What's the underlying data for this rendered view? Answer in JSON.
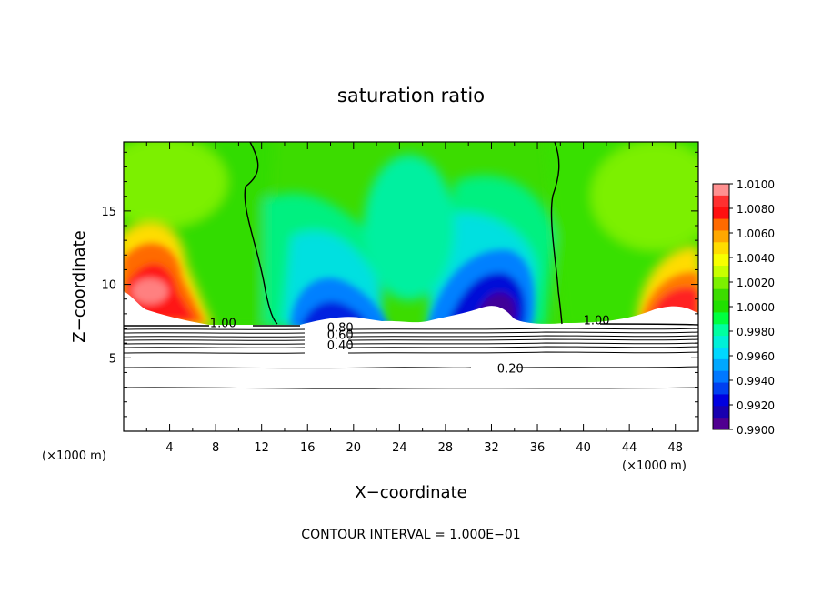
{
  "chart_data": {
    "type": "heatmap",
    "title": "saturation ratio",
    "xlabel": "X−coordinate",
    "ylabel": "Z−coordinate",
    "x_unit_left": "(×1000 m)",
    "x_unit_right": "(×1000 m)",
    "xlim": [
      0,
      50
    ],
    "ylim": [
      0,
      19.7
    ],
    "x_ticks": [
      4,
      8,
      12,
      16,
      20,
      24,
      28,
      32,
      36,
      40,
      44,
      48
    ],
    "y_ticks": [
      5,
      10,
      15
    ],
    "colorbar": {
      "range": [
        0.99,
        1.01
      ],
      "tick_labels": [
        "1.0100",
        "1.0080",
        "1.0060",
        "1.0040",
        "1.0020",
        "1.0000",
        "0.9980",
        "0.9960",
        "0.9940",
        "0.9920",
        "0.9900"
      ],
      "colors": [
        "#ff9090",
        "#ff3030",
        "#ff1010",
        "#ff6a00",
        "#ffa800",
        "#ffdc00",
        "#f8ff00",
        "#c8ff00",
        "#7cf000",
        "#3cdc00",
        "#20e000",
        "#00ff40",
        "#00ffa0",
        "#00f0d8",
        "#00d8ff",
        "#00a8ff",
        "#0078ff",
        "#0040f0",
        "#0000e0",
        "#1800b0",
        "#500090"
      ]
    },
    "contour_lines": [
      {
        "label": "1.00",
        "x": 7.5,
        "z": 7.4
      },
      {
        "label": "1.00",
        "x": 40,
        "z": 7.6
      },
      {
        "label": "0.80",
        "x": 17.7,
        "z": 7.1
      },
      {
        "label": "0.60",
        "x": 17.7,
        "z": 6.6
      },
      {
        "label": "0.40",
        "x": 17.7,
        "z": 5.9
      },
      {
        "label": "0.20",
        "x": 32.5,
        "z": 4.3
      }
    ],
    "contour_interval_text": "CONTOUR INTERVAL = 1.000E−01"
  }
}
